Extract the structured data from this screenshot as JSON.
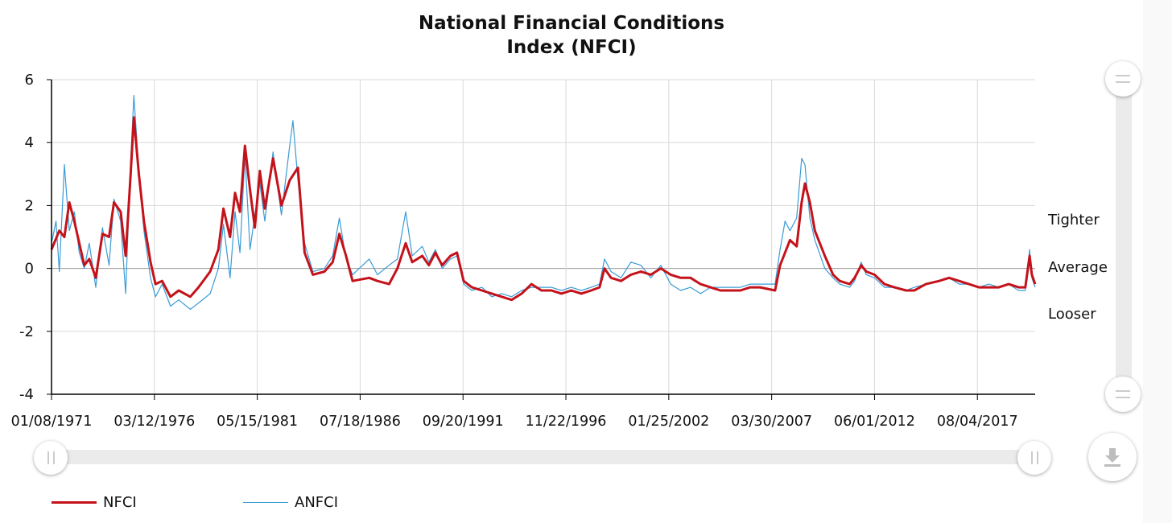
{
  "chart_data": {
    "type": "line",
    "title": "National Financial Conditions Index (NFCI)",
    "title_lines": [
      "National Financial Conditions",
      "Index (NFCI)"
    ],
    "ylim": [
      -4,
      6
    ],
    "yticks": [
      "6",
      "4",
      "2",
      "0",
      "-2",
      "-4"
    ],
    "ytick_values": [
      6,
      4,
      2,
      0,
      -2,
      -4
    ],
    "xlim": [
      "1971-01-08",
      "2020-06-30"
    ],
    "xticks": [
      "01/08/1971",
      "03/12/1976",
      "05/15/1981",
      "07/18/1986",
      "09/20/1991",
      "11/22/1996",
      "01/25/2002",
      "03/30/2007",
      "06/01/2012",
      "08/04/2017"
    ],
    "xtick_dates": [
      "1971-01-08",
      "1976-03-12",
      "1981-05-15",
      "1986-07-18",
      "1991-09-20",
      "1996-11-22",
      "2002-01-25",
      "2007-03-30",
      "2012-06-01",
      "2017-08-04"
    ],
    "grid": true,
    "legend_position": "bottom-left",
    "annotations": [
      {
        "text": "Tighter",
        "y": 1.5
      },
      {
        "text": "Average",
        "y": 0
      },
      {
        "text": "Looser",
        "y": -1.5
      }
    ],
    "series": [
      {
        "name": "NFCI",
        "color": "#c4121a",
        "points": [
          [
            "1971-01-08",
            0.6
          ],
          [
            "1971-06-01",
            1.2
          ],
          [
            "1971-09-01",
            1.0
          ],
          [
            "1971-12-01",
            2.1
          ],
          [
            "1972-03-01",
            1.5
          ],
          [
            "1972-06-01",
            0.8
          ],
          [
            "1972-09-01",
            0.1
          ],
          [
            "1972-12-01",
            0.3
          ],
          [
            "1973-04-01",
            -0.3
          ],
          [
            "1973-08-01",
            1.1
          ],
          [
            "1973-12-01",
            1.0
          ],
          [
            "1974-03-01",
            2.1
          ],
          [
            "1974-07-01",
            1.8
          ],
          [
            "1974-10-01",
            0.4
          ],
          [
            "1975-01-01",
            3.0
          ],
          [
            "1975-03-01",
            4.8
          ],
          [
            "1975-06-01",
            3.0
          ],
          [
            "1975-09-01",
            1.5
          ],
          [
            "1976-01-01",
            0.2
          ],
          [
            "1976-04-01",
            -0.5
          ],
          [
            "1976-08-01",
            -0.4
          ],
          [
            "1977-01-01",
            -0.9
          ],
          [
            "1977-06-01",
            -0.7
          ],
          [
            "1978-01-01",
            -0.9
          ],
          [
            "1978-06-01",
            -0.6
          ],
          [
            "1979-01-01",
            -0.1
          ],
          [
            "1979-06-01",
            0.6
          ],
          [
            "1979-09-01",
            1.9
          ],
          [
            "1980-01-01",
            1.0
          ],
          [
            "1980-04-01",
            2.4
          ],
          [
            "1980-07-01",
            1.8
          ],
          [
            "1980-10-01",
            3.9
          ],
          [
            "1981-01-01",
            2.5
          ],
          [
            "1981-04-01",
            1.3
          ],
          [
            "1981-07-01",
            3.1
          ],
          [
            "1981-10-01",
            1.9
          ],
          [
            "1982-03-01",
            3.5
          ],
          [
            "1982-08-01",
            2.0
          ],
          [
            "1983-01-01",
            2.8
          ],
          [
            "1983-06-01",
            3.2
          ],
          [
            "1983-10-01",
            0.5
          ],
          [
            "1984-03-01",
            -0.2
          ],
          [
            "1984-10-01",
            -0.1
          ],
          [
            "1985-03-01",
            0.2
          ],
          [
            "1985-07-01",
            1.1
          ],
          [
            "1985-11-01",
            0.4
          ],
          [
            "1986-03-01",
            -0.4
          ],
          [
            "1987-01-01",
            -0.3
          ],
          [
            "1987-06-01",
            -0.4
          ],
          [
            "1988-01-01",
            -0.5
          ],
          [
            "1988-06-01",
            0.0
          ],
          [
            "1988-11-01",
            0.8
          ],
          [
            "1989-03-01",
            0.2
          ],
          [
            "1989-09-01",
            0.4
          ],
          [
            "1990-01-01",
            0.1
          ],
          [
            "1990-05-01",
            0.5
          ],
          [
            "1990-09-01",
            0.1
          ],
          [
            "1991-02-01",
            0.4
          ],
          [
            "1991-06-01",
            0.5
          ],
          [
            "1991-10-01",
            -0.4
          ],
          [
            "1992-03-01",
            -0.6
          ],
          [
            "1992-09-01",
            -0.7
          ],
          [
            "1993-03-01",
            -0.8
          ],
          [
            "1993-09-01",
            -0.9
          ],
          [
            "1994-03-01",
            -1.0
          ],
          [
            "1994-09-01",
            -0.8
          ],
          [
            "1995-03-01",
            -0.5
          ],
          [
            "1995-09-01",
            -0.7
          ],
          [
            "1996-03-01",
            -0.7
          ],
          [
            "1996-09-01",
            -0.8
          ],
          [
            "1997-03-01",
            -0.7
          ],
          [
            "1997-09-01",
            -0.8
          ],
          [
            "1998-03-01",
            -0.7
          ],
          [
            "1998-08-01",
            -0.6
          ],
          [
            "1998-11-01",
            0.0
          ],
          [
            "1999-03-01",
            -0.3
          ],
          [
            "1999-09-01",
            -0.4
          ],
          [
            "2000-03-01",
            -0.2
          ],
          [
            "2000-09-01",
            -0.1
          ],
          [
            "2001-03-01",
            -0.2
          ],
          [
            "2001-09-01",
            0.0
          ],
          [
            "2002-03-01",
            -0.2
          ],
          [
            "2002-09-01",
            -0.3
          ],
          [
            "2003-03-01",
            -0.3
          ],
          [
            "2003-09-01",
            -0.5
          ],
          [
            "2004-03-01",
            -0.6
          ],
          [
            "2004-09-01",
            -0.7
          ],
          [
            "2005-03-01",
            -0.7
          ],
          [
            "2005-09-01",
            -0.7
          ],
          [
            "2006-03-01",
            -0.6
          ],
          [
            "2006-09-01",
            -0.6
          ],
          [
            "2007-06-01",
            -0.7
          ],
          [
            "2007-09-01",
            0.1
          ],
          [
            "2007-12-01",
            0.5
          ],
          [
            "2008-03-01",
            0.9
          ],
          [
            "2008-07-01",
            0.7
          ],
          [
            "2008-10-01",
            2.1
          ],
          [
            "2008-12-01",
            2.7
          ],
          [
            "2009-03-01",
            2.1
          ],
          [
            "2009-06-01",
            1.2
          ],
          [
            "2009-12-01",
            0.4
          ],
          [
            "2010-05-01",
            -0.2
          ],
          [
            "2010-09-01",
            -0.4
          ],
          [
            "2011-03-01",
            -0.5
          ],
          [
            "2011-06-01",
            -0.3
          ],
          [
            "2011-10-01",
            0.1
          ],
          [
            "2012-01-01",
            -0.1
          ],
          [
            "2012-06-01",
            -0.2
          ],
          [
            "2012-12-01",
            -0.5
          ],
          [
            "2013-06-01",
            -0.6
          ],
          [
            "2014-01-01",
            -0.7
          ],
          [
            "2014-06-01",
            -0.7
          ],
          [
            "2015-01-01",
            -0.5
          ],
          [
            "2015-09-01",
            -0.4
          ],
          [
            "2016-03-01",
            -0.3
          ],
          [
            "2016-09-01",
            -0.4
          ],
          [
            "2017-03-01",
            -0.5
          ],
          [
            "2017-09-01",
            -0.6
          ],
          [
            "2018-03-01",
            -0.6
          ],
          [
            "2018-09-01",
            -0.6
          ],
          [
            "2019-03-01",
            -0.5
          ],
          [
            "2019-09-01",
            -0.6
          ],
          [
            "2020-01-01",
            -0.6
          ],
          [
            "2020-03-20",
            0.4
          ],
          [
            "2020-05-01",
            -0.2
          ],
          [
            "2020-06-30",
            -0.5
          ]
        ]
      },
      {
        "name": "ANFCI",
        "color": "#3a9bd5",
        "points": [
          [
            "1971-01-08",
            0.8
          ],
          [
            "1971-04-01",
            1.5
          ],
          [
            "1971-06-01",
            -0.1
          ],
          [
            "1971-09-01",
            3.3
          ],
          [
            "1971-12-01",
            1.2
          ],
          [
            "1972-03-01",
            1.8
          ],
          [
            "1972-06-01",
            0.5
          ],
          [
            "1972-09-01",
            0.0
          ],
          [
            "1972-12-01",
            0.8
          ],
          [
            "1973-04-01",
            -0.6
          ],
          [
            "1973-08-01",
            1.3
          ],
          [
            "1973-12-01",
            0.1
          ],
          [
            "1974-03-01",
            2.2
          ],
          [
            "1974-07-01",
            1.5
          ],
          [
            "1974-10-01",
            -0.8
          ],
          [
            "1975-01-01",
            3.4
          ],
          [
            "1975-03-01",
            5.5
          ],
          [
            "1975-06-01",
            3.1
          ],
          [
            "1975-09-01",
            1.2
          ],
          [
            "1976-01-01",
            -0.3
          ],
          [
            "1976-04-01",
            -0.9
          ],
          [
            "1976-08-01",
            -0.5
          ],
          [
            "1977-01-01",
            -1.2
          ],
          [
            "1977-06-01",
            -1.0
          ],
          [
            "1978-01-01",
            -1.3
          ],
          [
            "1978-06-01",
            -1.1
          ],
          [
            "1979-01-01",
            -0.8
          ],
          [
            "1979-06-01",
            0.0
          ],
          [
            "1979-09-01",
            1.4
          ],
          [
            "1980-01-01",
            -0.3
          ],
          [
            "1980-04-01",
            1.8
          ],
          [
            "1980-07-01",
            0.5
          ],
          [
            "1980-10-01",
            3.6
          ],
          [
            "1981-01-01",
            0.6
          ],
          [
            "1981-04-01",
            1.7
          ],
          [
            "1981-07-01",
            2.7
          ],
          [
            "1981-10-01",
            1.5
          ],
          [
            "1982-03-01",
            3.7
          ],
          [
            "1982-08-01",
            1.7
          ],
          [
            "1983-01-01",
            3.9
          ],
          [
            "1983-03-01",
            4.7
          ],
          [
            "1983-06-01",
            2.8
          ],
          [
            "1983-10-01",
            0.8
          ],
          [
            "1984-03-01",
            -0.1
          ],
          [
            "1984-10-01",
            0.0
          ],
          [
            "1985-03-01",
            0.4
          ],
          [
            "1985-07-01",
            1.6
          ],
          [
            "1985-11-01",
            0.3
          ],
          [
            "1986-03-01",
            -0.2
          ],
          [
            "1987-01-01",
            0.3
          ],
          [
            "1987-06-01",
            -0.2
          ],
          [
            "1988-01-01",
            0.1
          ],
          [
            "1988-06-01",
            0.3
          ],
          [
            "1988-11-01",
            1.8
          ],
          [
            "1989-03-01",
            0.4
          ],
          [
            "1989-09-01",
            0.7
          ],
          [
            "1990-01-01",
            0.2
          ],
          [
            "1990-05-01",
            0.6
          ],
          [
            "1990-09-01",
            0.0
          ],
          [
            "1991-02-01",
            0.3
          ],
          [
            "1991-06-01",
            0.4
          ],
          [
            "1991-10-01",
            -0.5
          ],
          [
            "1992-03-01",
            -0.7
          ],
          [
            "1992-09-01",
            -0.6
          ],
          [
            "1993-03-01",
            -0.9
          ],
          [
            "1993-09-01",
            -0.8
          ],
          [
            "1994-03-01",
            -0.9
          ],
          [
            "1994-09-01",
            -0.7
          ],
          [
            "1995-03-01",
            -0.6
          ],
          [
            "1995-09-01",
            -0.6
          ],
          [
            "1996-03-01",
            -0.6
          ],
          [
            "1996-09-01",
            -0.7
          ],
          [
            "1997-03-01",
            -0.6
          ],
          [
            "1997-09-01",
            -0.7
          ],
          [
            "1998-03-01",
            -0.6
          ],
          [
            "1998-08-01",
            -0.5
          ],
          [
            "1998-11-01",
            0.3
          ],
          [
            "1999-03-01",
            -0.1
          ],
          [
            "1999-09-01",
            -0.3
          ],
          [
            "2000-03-01",
            0.2
          ],
          [
            "2000-09-01",
            0.1
          ],
          [
            "2001-03-01",
            -0.3
          ],
          [
            "2001-09-01",
            0.1
          ],
          [
            "2002-03-01",
            -0.5
          ],
          [
            "2002-09-01",
            -0.7
          ],
          [
            "2003-03-01",
            -0.6
          ],
          [
            "2003-09-01",
            -0.8
          ],
          [
            "2004-03-01",
            -0.6
          ],
          [
            "2004-09-01",
            -0.6
          ],
          [
            "2005-03-01",
            -0.6
          ],
          [
            "2005-09-01",
            -0.6
          ],
          [
            "2006-03-01",
            -0.5
          ],
          [
            "2006-09-01",
            -0.5
          ],
          [
            "2007-06-01",
            -0.5
          ],
          [
            "2007-09-01",
            0.6
          ],
          [
            "2007-12-01",
            1.5
          ],
          [
            "2008-03-01",
            1.2
          ],
          [
            "2008-07-01",
            1.6
          ],
          [
            "2008-10-01",
            3.5
          ],
          [
            "2008-12-01",
            3.3
          ],
          [
            "2009-03-01",
            1.6
          ],
          [
            "2009-06-01",
            0.9
          ],
          [
            "2009-12-01",
            0.0
          ],
          [
            "2010-05-01",
            -0.3
          ],
          [
            "2010-09-01",
            -0.5
          ],
          [
            "2011-03-01",
            -0.6
          ],
          [
            "2011-06-01",
            -0.4
          ],
          [
            "2011-10-01",
            0.2
          ],
          [
            "2012-01-01",
            -0.2
          ],
          [
            "2012-06-01",
            -0.3
          ],
          [
            "2012-12-01",
            -0.6
          ],
          [
            "2013-06-01",
            -0.6
          ],
          [
            "2014-01-01",
            -0.7
          ],
          [
            "2014-06-01",
            -0.6
          ],
          [
            "2015-01-01",
            -0.5
          ],
          [
            "2015-09-01",
            -0.4
          ],
          [
            "2016-03-01",
            -0.3
          ],
          [
            "2016-09-01",
            -0.5
          ],
          [
            "2017-03-01",
            -0.5
          ],
          [
            "2017-09-01",
            -0.6
          ],
          [
            "2018-03-01",
            -0.5
          ],
          [
            "2018-09-01",
            -0.6
          ],
          [
            "2019-03-01",
            -0.5
          ],
          [
            "2019-09-01",
            -0.7
          ],
          [
            "2020-01-01",
            -0.7
          ],
          [
            "2020-03-20",
            0.6
          ],
          [
            "2020-05-01",
            -0.3
          ],
          [
            "2020-06-30",
            -0.6
          ]
        ]
      }
    ]
  },
  "icons": {
    "download": "download-icon",
    "scroll_handle": "grip-icon"
  },
  "colors": {
    "grid": "#d9d9d9",
    "zero_line": "#999999",
    "axis": "#000000",
    "scroll_track": "#ebebeb"
  }
}
